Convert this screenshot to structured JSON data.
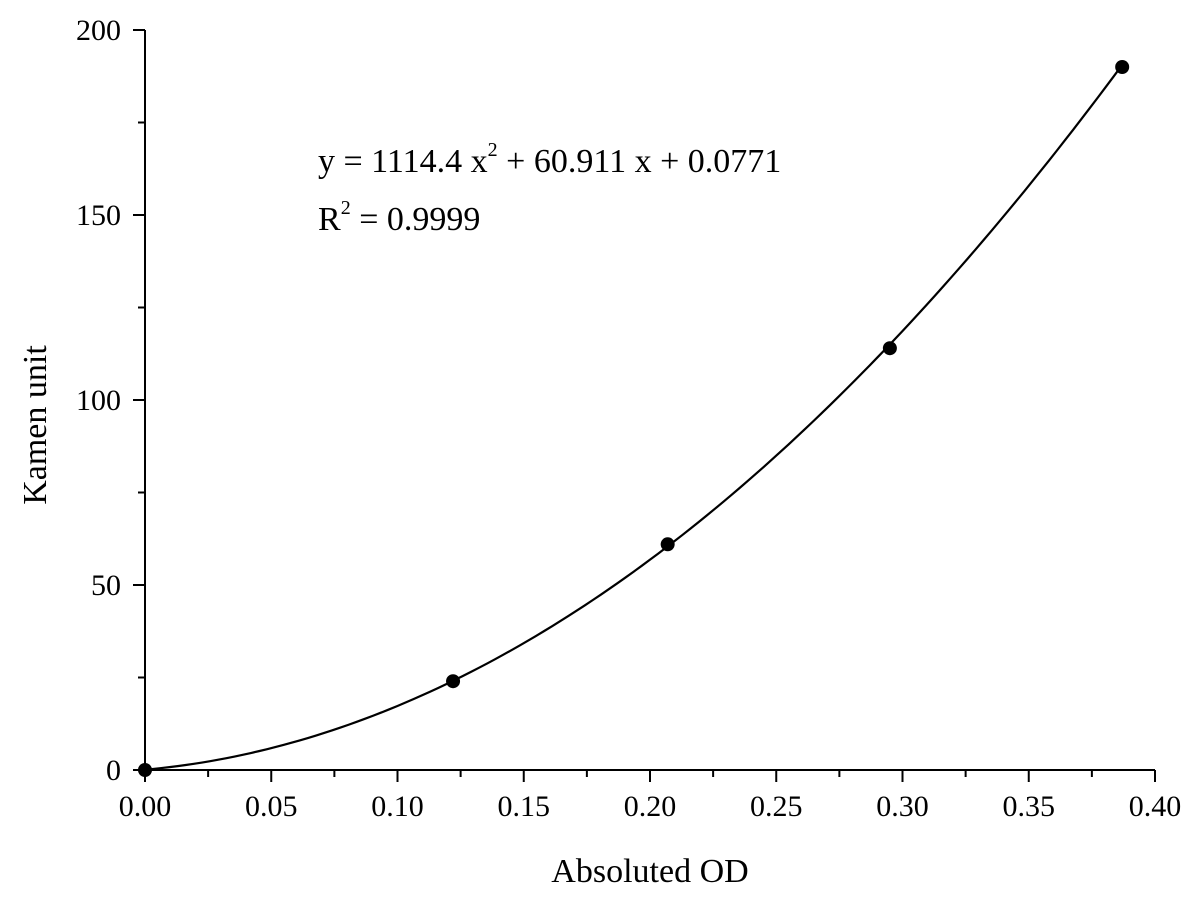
{
  "chart_data": {
    "type": "scatter",
    "title": "",
    "xlabel": "Absoluted OD",
    "ylabel": "Kamen unit",
    "xlim": [
      0.0,
      0.4
    ],
    "ylim": [
      0,
      200
    ],
    "grid": false,
    "x_ticks": [
      "0.00",
      "0.05",
      "0.10",
      "0.15",
      "0.20",
      "0.25",
      "0.30",
      "0.35",
      "0.40"
    ],
    "y_ticks": [
      "0",
      "50",
      "100",
      "150",
      "200"
    ],
    "points": [
      {
        "x": 0.0,
        "y": 0
      },
      {
        "x": 0.122,
        "y": 24
      },
      {
        "x": 0.207,
        "y": 61
      },
      {
        "x": 0.295,
        "y": 114
      },
      {
        "x": 0.387,
        "y": 190
      }
    ],
    "fit": {
      "type": "polynomial",
      "degree": 2,
      "coefficients": {
        "a": 1114.4,
        "b": 60.911,
        "c": 0.0771
      },
      "x_range": [
        0.0,
        0.387
      ],
      "equation_text": {
        "lhs": "y = 1114.4 x",
        "exp": "2",
        "rhs": " + 60.911 x + 0.0771"
      },
      "r2_text": {
        "lhs": "R",
        "exp": "2",
        "rhs": " = 0.9999"
      }
    },
    "colors": {
      "axis": "#000000",
      "marker": "#000000",
      "line": "#000000"
    }
  }
}
